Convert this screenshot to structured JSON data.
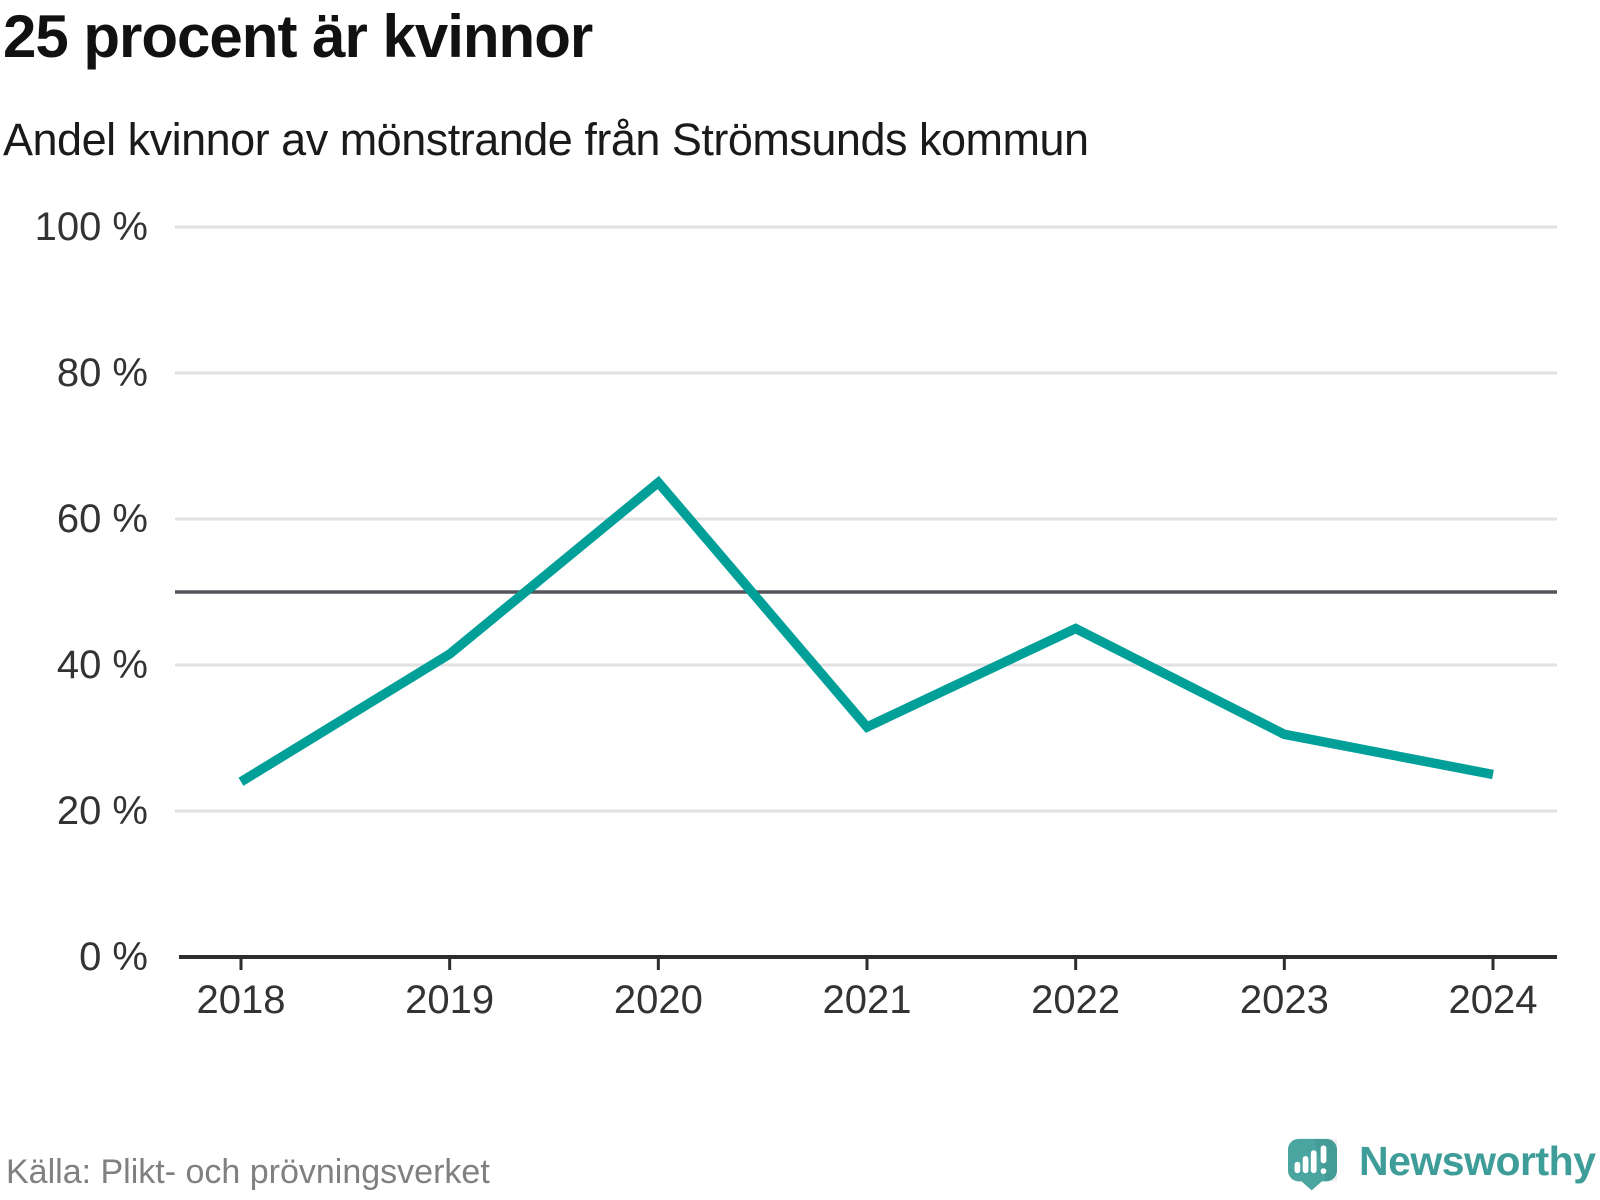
{
  "header": {
    "title": "25 procent är kvinnor",
    "subtitle": "Andel kvinnor av mönstrande från Strömsunds kommun"
  },
  "footer": {
    "source": "Källa: Plikt- och prövningsverket",
    "brand": "Newsworthy"
  },
  "colors": {
    "line": "#00a099",
    "grid": "#e2e2e2",
    "reference_line": "#54555b",
    "axis": "#2d2d2d",
    "tick_text": "#333333",
    "source_text": "#7f8082",
    "brand_teal": "#3e9d98",
    "logo_bubble": "#4aa5a0"
  },
  "chart_data": {
    "type": "line",
    "title": "25 procent är kvinnor",
    "subtitle": "Andel kvinnor av mönstrande från Strömsunds kommun",
    "series_name": "Andel kvinnor av mönstrande",
    "x": [
      2018,
      2019,
      2020,
      2021,
      2022,
      2023,
      2024
    ],
    "values": [
      24,
      41.5,
      65,
      31.5,
      45,
      30.5,
      25
    ],
    "unit": "%",
    "ylim": [
      0,
      100
    ],
    "yticks": [
      0,
      20,
      40,
      60,
      80,
      100
    ],
    "ytick_labels": [
      "0 %",
      "20 %",
      "40 %",
      "60 %",
      "80 %",
      "100 %"
    ],
    "xtick_labels": [
      "2018",
      "2019",
      "2020",
      "2021",
      "2022",
      "2023",
      "2024"
    ],
    "reference_line": 50,
    "grid": "horizontal",
    "legend": "none",
    "source": "Källa: Plikt- och prövningsverket"
  }
}
